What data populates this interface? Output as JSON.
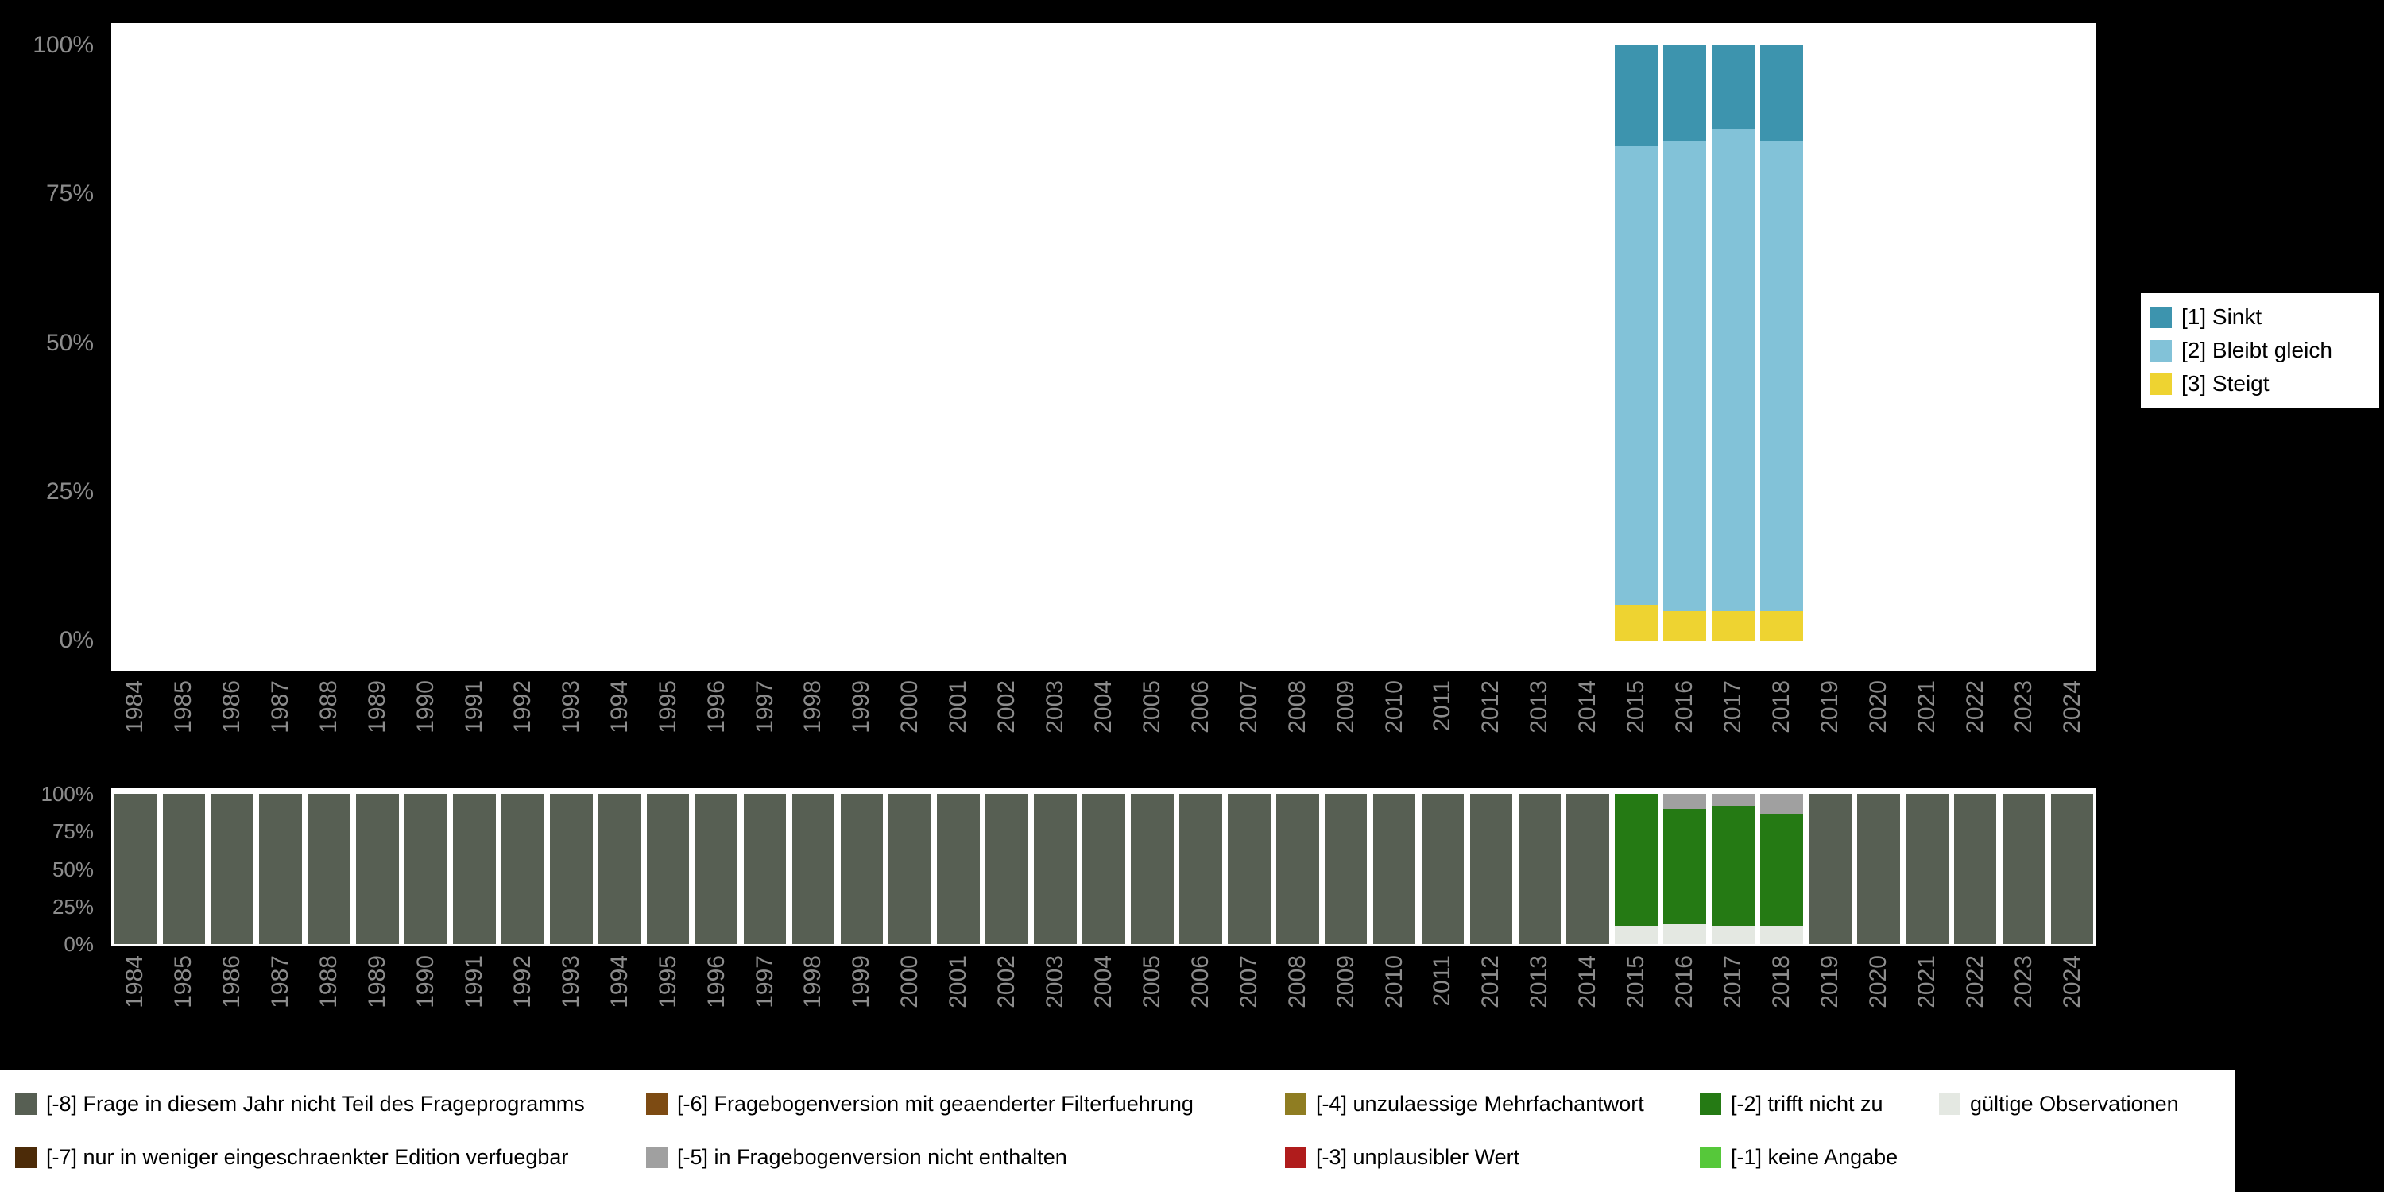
{
  "figure": {
    "background": "#000000",
    "panel_background": "#ffffff",
    "axis_text_color": "#8c8c8c"
  },
  "colors": {
    "sinkt": "#3d94ae",
    "bleibt_gleich": "#82c2d8",
    "steigt": "#eed331",
    "m8": "#575f53",
    "m7": "#4c2b08",
    "m6": "#7d4b13",
    "m5": "#a0a0a0",
    "m4": "#8f7d22",
    "m3": "#b01c1c",
    "m2": "#257a14",
    "m1": "#56c83a",
    "valid": "#e4e8e2"
  },
  "top_legend": {
    "items": [
      {
        "label": "[1] Sinkt",
        "color": "#3d94ae"
      },
      {
        "label": "[2] Bleibt gleich",
        "color": "#82c2d8"
      },
      {
        "label": "[3] Steigt",
        "color": "#eed331"
      }
    ]
  },
  "bottom_legend": {
    "items": [
      {
        "label": "[-8] Frage in diesem Jahr nicht Teil des Frageprogramms",
        "color": "#575f53"
      },
      {
        "label": "[-6] Fragebogenversion mit geaenderter Filterfuehrung",
        "color": "#7d4b13"
      },
      {
        "label": "[-4] unzulaessige Mehrfachantwort",
        "color": "#8f7d22"
      },
      {
        "label": "[-2] trifft nicht zu",
        "color": "#257a14"
      },
      {
        "label": "gültige Observationen",
        "color": "#e4e8e2"
      },
      {
        "label": "[-7] nur in weniger eingeschraenkter Edition verfuegbar",
        "color": "#4c2b08"
      },
      {
        "label": "[-5] in Fragebogenversion nicht enthalten",
        "color": "#a0a0a0"
      },
      {
        "label": "[-3] unplausibler Wert",
        "color": "#b01c1c"
      },
      {
        "label": "[-1] keine Angabe",
        "color": "#56c83a"
      }
    ]
  },
  "chart_data": [
    {
      "type": "bar",
      "stacked": true,
      "stack_order": "bottom_to_top",
      "title": "",
      "xlabel": "",
      "ylabel": "",
      "ylim": [
        0,
        100
      ],
      "legend_position": "right",
      "x": [
        1984,
        1985,
        1986,
        1987,
        1988,
        1989,
        1990,
        1991,
        1992,
        1993,
        1994,
        1995,
        1996,
        1997,
        1998,
        1999,
        2000,
        2001,
        2002,
        2003,
        2004,
        2005,
        2006,
        2007,
        2008,
        2009,
        2010,
        2011,
        2012,
        2013,
        2014,
        2015,
        2016,
        2017,
        2018,
        2019,
        2020,
        2021,
        2022,
        2023,
        2024
      ],
      "yticks": [
        {
          "label": "100%",
          "value": 100
        },
        {
          "label": "75%",
          "value": 75
        },
        {
          "label": "50%",
          "value": 50
        },
        {
          "label": "25%",
          "value": 25
        },
        {
          "label": "0%",
          "value": 0
        }
      ],
      "series": [
        {
          "name": "[3] Steigt",
          "color": "#eed331",
          "values": [
            0,
            0,
            0,
            0,
            0,
            0,
            0,
            0,
            0,
            0,
            0,
            0,
            0,
            0,
            0,
            0,
            0,
            0,
            0,
            0,
            0,
            0,
            0,
            0,
            0,
            0,
            0,
            0,
            0,
            0,
            0,
            6,
            5,
            5,
            5,
            0,
            0,
            0,
            0,
            0,
            0
          ]
        },
        {
          "name": "[2] Bleibt gleich",
          "color": "#82c2d8",
          "values": [
            0,
            0,
            0,
            0,
            0,
            0,
            0,
            0,
            0,
            0,
            0,
            0,
            0,
            0,
            0,
            0,
            0,
            0,
            0,
            0,
            0,
            0,
            0,
            0,
            0,
            0,
            0,
            0,
            0,
            0,
            0,
            77,
            79,
            81,
            79,
            0,
            0,
            0,
            0,
            0,
            0
          ]
        },
        {
          "name": "[1] Sinkt",
          "color": "#3d94ae",
          "values": [
            0,
            0,
            0,
            0,
            0,
            0,
            0,
            0,
            0,
            0,
            0,
            0,
            0,
            0,
            0,
            0,
            0,
            0,
            0,
            0,
            0,
            0,
            0,
            0,
            0,
            0,
            0,
            0,
            0,
            0,
            0,
            17,
            16,
            14,
            16,
            0,
            0,
            0,
            0,
            0,
            0
          ]
        }
      ]
    },
    {
      "type": "bar",
      "stacked": true,
      "stack_order": "bottom_to_top",
      "title": "",
      "xlabel": "",
      "ylabel": "",
      "ylim": [
        0,
        100
      ],
      "legend_position": "bottom",
      "x": [
        1984,
        1985,
        1986,
        1987,
        1988,
        1989,
        1990,
        1991,
        1992,
        1993,
        1994,
        1995,
        1996,
        1997,
        1998,
        1999,
        2000,
        2001,
        2002,
        2003,
        2004,
        2005,
        2006,
        2007,
        2008,
        2009,
        2010,
        2011,
        2012,
        2013,
        2014,
        2015,
        2016,
        2017,
        2018,
        2019,
        2020,
        2021,
        2022,
        2023,
        2024
      ],
      "yticks": [
        {
          "label": "100%",
          "value": 100
        },
        {
          "label": "75%",
          "value": 75
        },
        {
          "label": "50%",
          "value": 50
        },
        {
          "label": "25%",
          "value": 25
        },
        {
          "label": "0%",
          "value": 0
        }
      ],
      "series": [
        {
          "name": "gültige Observationen",
          "color": "#e4e8e2",
          "values": [
            0,
            0,
            0,
            0,
            0,
            0,
            0,
            0,
            0,
            0,
            0,
            0,
            0,
            0,
            0,
            0,
            0,
            0,
            0,
            0,
            0,
            0,
            0,
            0,
            0,
            0,
            0,
            0,
            0,
            0,
            0,
            12,
            13,
            12,
            12,
            0,
            0,
            0,
            0,
            0,
            0
          ]
        },
        {
          "name": "[-2] trifft nicht zu",
          "color": "#257a14",
          "values": [
            0,
            0,
            0,
            0,
            0,
            0,
            0,
            0,
            0,
            0,
            0,
            0,
            0,
            0,
            0,
            0,
            0,
            0,
            0,
            0,
            0,
            0,
            0,
            0,
            0,
            0,
            0,
            0,
            0,
            0,
            0,
            88,
            77,
            80,
            75,
            0,
            0,
            0,
            0,
            0,
            0
          ]
        },
        {
          "name": "[-5] in Fragebogenversion nicht enthalten",
          "color": "#a0a0a0",
          "values": [
            0,
            0,
            0,
            0,
            0,
            0,
            0,
            0,
            0,
            0,
            0,
            0,
            0,
            0,
            0,
            0,
            0,
            0,
            0,
            0,
            0,
            0,
            0,
            0,
            0,
            0,
            0,
            0,
            0,
            0,
            0,
            0,
            10,
            8,
            13,
            0,
            0,
            0,
            0,
            0,
            0
          ]
        },
        {
          "name": "[-8] Frage in diesem Jahr nicht Teil des Frageprogramms",
          "color": "#575f53",
          "values": [
            100,
            100,
            100,
            100,
            100,
            100,
            100,
            100,
            100,
            100,
            100,
            100,
            100,
            100,
            100,
            100,
            100,
            100,
            100,
            100,
            100,
            100,
            100,
            100,
            100,
            100,
            100,
            100,
            100,
            100,
            100,
            0,
            0,
            0,
            0,
            100,
            100,
            100,
            100,
            100,
            100
          ]
        }
      ]
    }
  ]
}
